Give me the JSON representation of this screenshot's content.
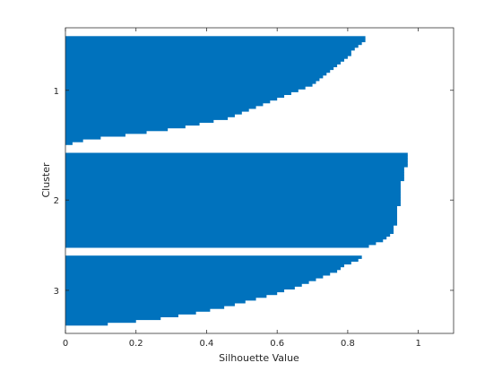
{
  "chart_data": {
    "type": "bar",
    "orientation": "horizontal",
    "xlabel": "Silhouette Value",
    "ylabel": "Cluster",
    "xlim": [
      0,
      1.1
    ],
    "xticks": [
      0,
      0.2,
      0.4,
      0.6,
      0.8,
      1
    ],
    "grid": false,
    "bar_color": "#0072BD",
    "clusters": [
      {
        "label": "1",
        "values": [
          0.85,
          0.85,
          0.84,
          0.83,
          0.82,
          0.81,
          0.81,
          0.8,
          0.79,
          0.78,
          0.77,
          0.76,
          0.75,
          0.74,
          0.73,
          0.72,
          0.71,
          0.7,
          0.68,
          0.66,
          0.64,
          0.62,
          0.6,
          0.58,
          0.56,
          0.54,
          0.52,
          0.5,
          0.48,
          0.46,
          0.42,
          0.38,
          0.34,
          0.29,
          0.23,
          0.17,
          0.1,
          0.05,
          0.02
        ]
      },
      {
        "label": "2",
        "values": [
          0.97,
          0.97,
          0.97,
          0.97,
          0.97,
          0.96,
          0.96,
          0.96,
          0.96,
          0.96,
          0.95,
          0.95,
          0.95,
          0.95,
          0.95,
          0.95,
          0.95,
          0.95,
          0.95,
          0.94,
          0.94,
          0.94,
          0.94,
          0.94,
          0.94,
          0.94,
          0.93,
          0.93,
          0.93,
          0.92,
          0.91,
          0.9,
          0.88,
          0.86
        ]
      },
      {
        "label": "3",
        "values": [
          0.84,
          0.83,
          0.81,
          0.79,
          0.78,
          0.77,
          0.75,
          0.73,
          0.71,
          0.69,
          0.67,
          0.65,
          0.62,
          0.6,
          0.57,
          0.54,
          0.51,
          0.48,
          0.45,
          0.41,
          0.37,
          0.32,
          0.27,
          0.2,
          0.12
        ]
      }
    ]
  }
}
